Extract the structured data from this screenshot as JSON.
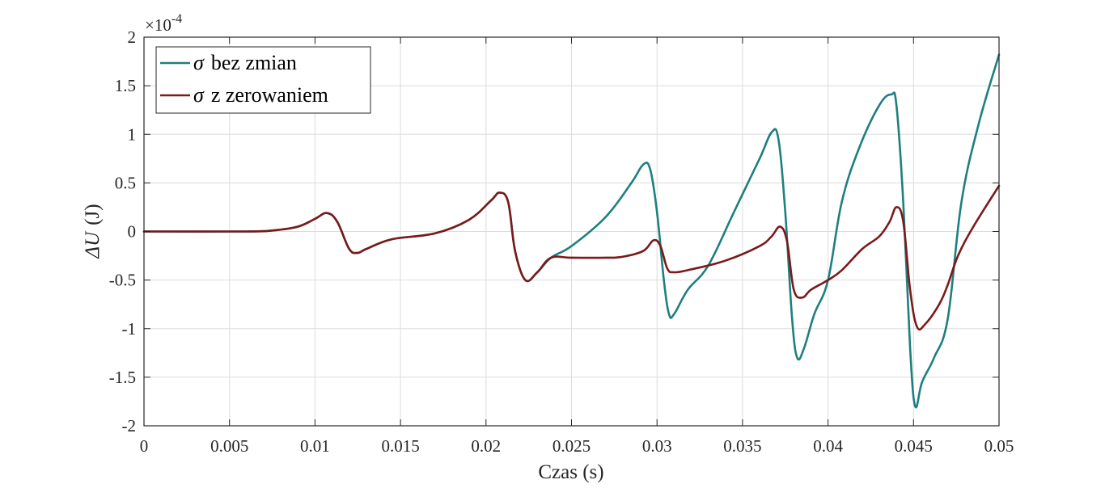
{
  "chart_data": {
    "type": "line",
    "xlabel": "Czas (s)",
    "ylabel_symbol": "ΔU",
    "ylabel_unit": "(J)",
    "y_multiplier": {
      "base": "×10",
      "exponent": "-4"
    },
    "xlim": [
      0,
      0.05
    ],
    "ylim": [
      -2,
      2
    ],
    "xticks": [
      0,
      0.005,
      0.01,
      0.015,
      0.02,
      0.025,
      0.03,
      0.035,
      0.04,
      0.045,
      0.05
    ],
    "xtick_labels": [
      "0",
      "0.005",
      "0.01",
      "0.015",
      "0.02",
      "0.025",
      "0.03",
      "0.035",
      "0.04",
      "0.045",
      "0.05"
    ],
    "yticks": [
      2,
      1.5,
      1,
      0.5,
      0,
      -0.5,
      -1,
      -1.5,
      -2
    ],
    "ytick_labels": [
      "2",
      "1.5",
      "1",
      "0.5",
      "0",
      "-0.5",
      "-1",
      "-1.5",
      "-2"
    ],
    "grid": true,
    "legend_position": "top-left",
    "series": [
      {
        "name_symbol": "σ",
        "name": "bez zmian",
        "color": "#1f7f7f",
        "x": [
          0,
          0.006,
          0.0075,
          0.009,
          0.01,
          0.0107,
          0.0113,
          0.012,
          0.0125,
          0.013,
          0.0145,
          0.017,
          0.019,
          0.0203,
          0.0208,
          0.0213,
          0.0217,
          0.0223,
          0.023,
          0.0238,
          0.025,
          0.027,
          0.0285,
          0.0292,
          0.0296,
          0.03,
          0.0304,
          0.0307,
          0.031,
          0.0318,
          0.033,
          0.0345,
          0.036,
          0.0367,
          0.0371,
          0.0375,
          0.0379,
          0.0382,
          0.0386,
          0.0392,
          0.04,
          0.0408,
          0.0418,
          0.043,
          0.0437,
          0.044,
          0.0444,
          0.0448,
          0.0451,
          0.0455,
          0.0462,
          0.047,
          0.0478,
          0.0488,
          0.05
        ],
        "y": [
          0,
          0,
          0.01,
          0.05,
          0.13,
          0.19,
          0.1,
          -0.18,
          -0.22,
          -0.18,
          -0.08,
          -0.02,
          0.12,
          0.32,
          0.4,
          0.3,
          -0.2,
          -0.5,
          -0.42,
          -0.27,
          -0.15,
          0.15,
          0.5,
          0.69,
          0.64,
          0.2,
          -0.5,
          -0.85,
          -0.85,
          -0.6,
          -0.35,
          0.2,
          0.75,
          1.02,
          0.95,
          0.2,
          -0.9,
          -1.3,
          -1.2,
          -0.85,
          -0.5,
          0.3,
          0.85,
          1.3,
          1.41,
          1.3,
          0.3,
          -1.2,
          -1.8,
          -1.55,
          -1.3,
          -0.9,
          0.3,
          1.1,
          1.82
        ]
      },
      {
        "name_symbol": "σ",
        "name": "z zerowaniem",
        "color": "#7a1a1a",
        "x": [
          0,
          0.006,
          0.0075,
          0.009,
          0.01,
          0.0107,
          0.0113,
          0.012,
          0.0125,
          0.013,
          0.0145,
          0.017,
          0.019,
          0.0203,
          0.0208,
          0.0213,
          0.0217,
          0.0223,
          0.023,
          0.0238,
          0.025,
          0.027,
          0.028,
          0.0292,
          0.0298,
          0.0302,
          0.0306,
          0.031,
          0.032,
          0.034,
          0.036,
          0.0367,
          0.0372,
          0.0376,
          0.038,
          0.0385,
          0.039,
          0.04,
          0.0408,
          0.042,
          0.043,
          0.0436,
          0.044,
          0.0444,
          0.0448,
          0.0452,
          0.0457,
          0.0465,
          0.047,
          0.0476,
          0.0485,
          0.05
        ],
        "y": [
          0,
          0,
          0.01,
          0.05,
          0.13,
          0.19,
          0.1,
          -0.18,
          -0.22,
          -0.18,
          -0.08,
          -0.02,
          0.12,
          0.32,
          0.4,
          0.3,
          -0.2,
          -0.5,
          -0.42,
          -0.27,
          -0.27,
          -0.27,
          -0.26,
          -0.2,
          -0.09,
          -0.15,
          -0.38,
          -0.42,
          -0.39,
          -0.3,
          -0.15,
          -0.05,
          0.05,
          -0.1,
          -0.6,
          -0.68,
          -0.6,
          -0.5,
          -0.4,
          -0.18,
          -0.05,
          0.1,
          0.25,
          0.1,
          -0.6,
          -0.98,
          -0.95,
          -0.75,
          -0.55,
          -0.25,
          0.05,
          0.47
        ]
      }
    ]
  }
}
